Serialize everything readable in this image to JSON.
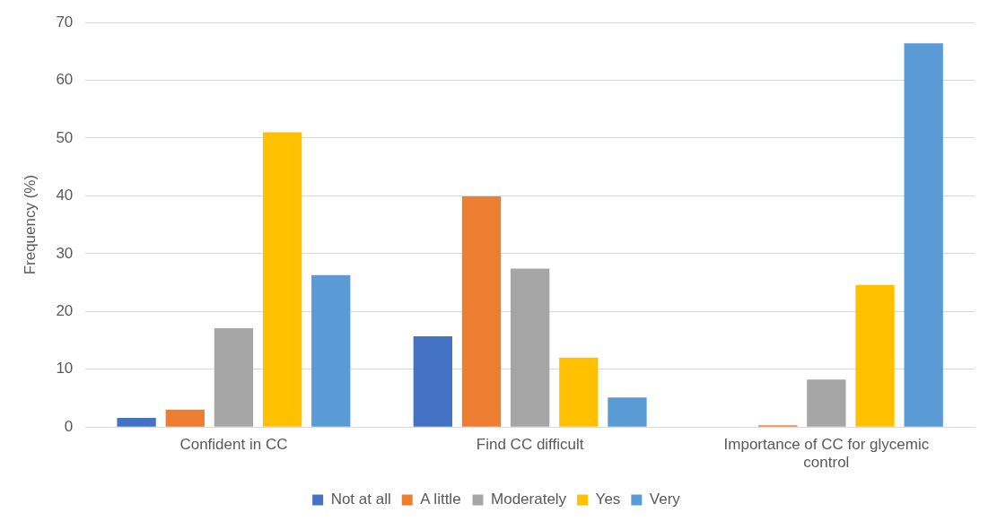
{
  "chart_data": {
    "type": "bar",
    "ylabel": "Frequency (%)",
    "categories": [
      "Confident in CC",
      "Find CC difficult",
      "Importance of CC for glycemic control"
    ],
    "series": [
      {
        "name": "Not at all",
        "color": "#4472c4",
        "values": [
          1.6,
          15.7,
          0
        ]
      },
      {
        "name": "A little",
        "color": "#ed7d31",
        "values": [
          3.0,
          39.9,
          0.3
        ]
      },
      {
        "name": "Moderately",
        "color": "#a5a5a5",
        "values": [
          17.1,
          27.4,
          8.2
        ]
      },
      {
        "name": "Yes",
        "color": "#ffc000",
        "values": [
          51.0,
          12.0,
          24.6
        ]
      },
      {
        "name": "Very",
        "color": "#5b9bd5",
        "values": [
          26.3,
          5.1,
          66.4
        ]
      }
    ],
    "ylim": [
      0,
      70
    ],
    "yticks": [
      0,
      10,
      20,
      30,
      40,
      50,
      60,
      70
    ],
    "grid": "y",
    "legend": "bottom"
  }
}
